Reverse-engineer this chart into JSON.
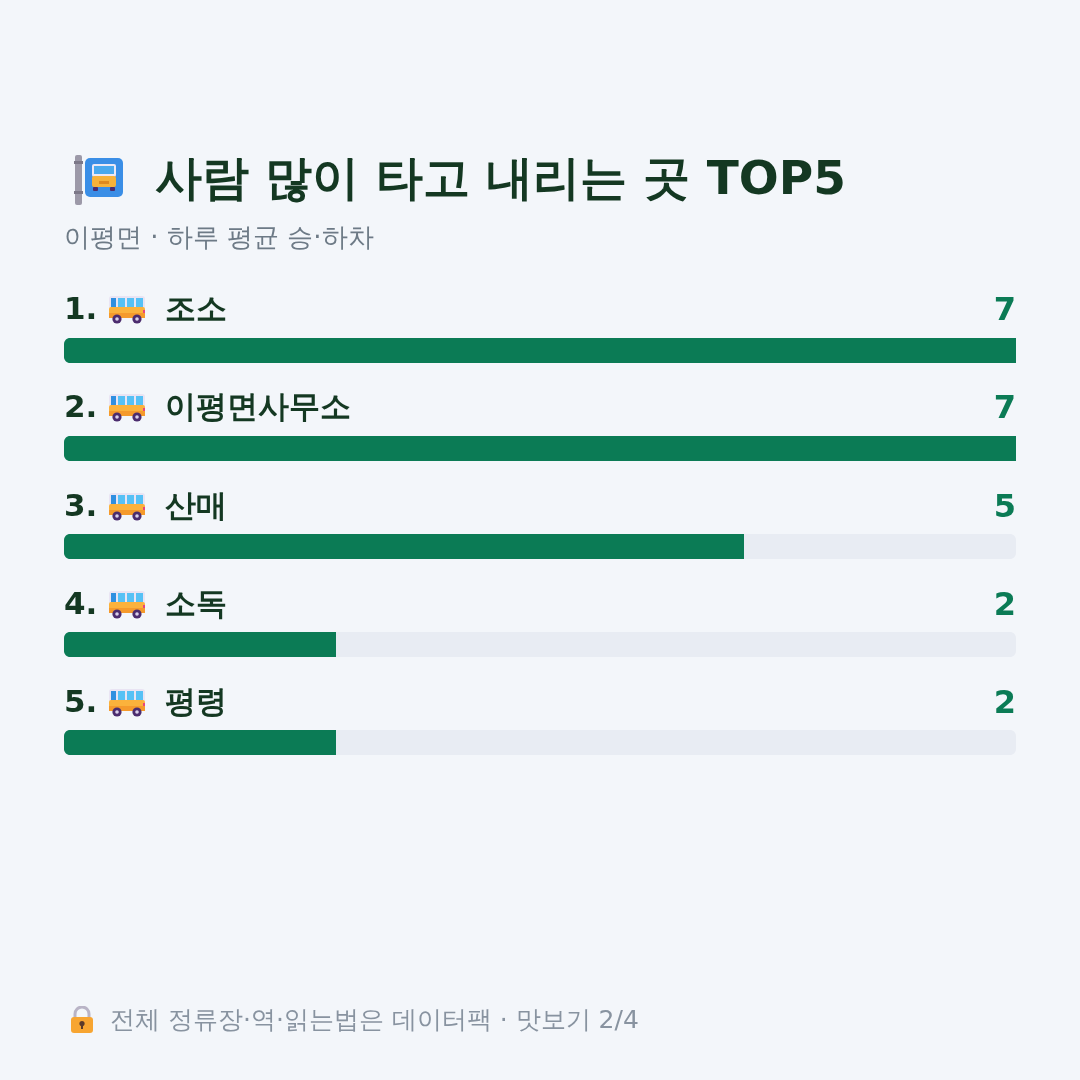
{
  "chart_data": {
    "type": "bar",
    "orientation": "horizontal",
    "title": "사람 많이 타고 내리는 곳 TOP5",
    "subtitle": "이평면 · 하루 평균 승·하차",
    "categories": [
      "1. 조소",
      "2. 이평면사무소",
      "3. 산매",
      "4. 소독",
      "5. 평령"
    ],
    "values": [
      7,
      7,
      5,
      2,
      2
    ],
    "color": "#0b7b55",
    "xlim": [
      0,
      7
    ],
    "data_labels": true,
    "tick_labels": "y",
    "annotations": [
      "전체 정류장·역·읽는법은 데이터팩 · 맛보기 2/4"
    ]
  }
}
